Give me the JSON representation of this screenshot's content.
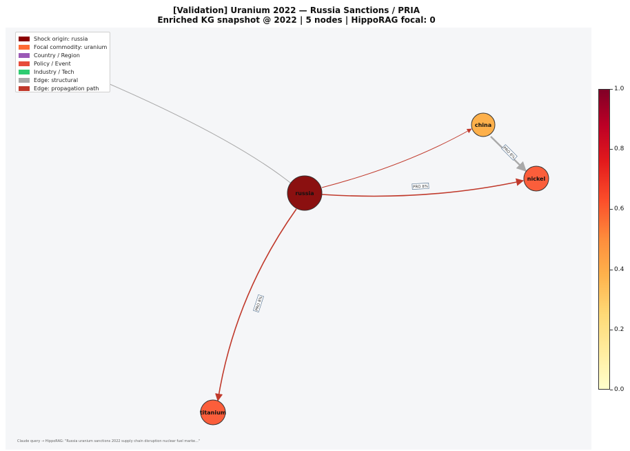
{
  "title_line1": "[Validation] Uranium 2022 — Russia Sanctions / PRIA",
  "title_line2": "Enriched KG snapshot @ 2022  |  5 nodes  |  HippoRAG focal: 0",
  "legend": [
    {
      "label": "Shock origin: russia",
      "color": "#8b0000"
    },
    {
      "label": "Focal commodity: uranium",
      "color": "#ff6b35"
    },
    {
      "label": "Country / Region",
      "color": "#9b59b6"
    },
    {
      "label": "Policy / Event",
      "color": "#e74c3c"
    },
    {
      "label": "Industry / Tech",
      "color": "#2ecc71"
    },
    {
      "label": "Edge: structural",
      "color": "#aaaaaa"
    },
    {
      "label": "Edge: propagation path",
      "color": "#c0392b"
    }
  ],
  "nodes": [
    {
      "id": "russia",
      "label": "russia",
      "color": "#8b1010"
    },
    {
      "id": "china",
      "label": "china",
      "color": "#fdb04b"
    },
    {
      "id": "nickel",
      "label": "nickel",
      "color": "#fb5e3b"
    },
    {
      "id": "titanium",
      "label": "titanium",
      "color": "#fb5e3b"
    },
    {
      "id": "hidden",
      "label": "",
      "color": "#ff6b35"
    }
  ],
  "edge_labels": {
    "russia_nickel": "PRO 8%",
    "china_nickel": "PRO 8%",
    "russia_titanium": "PRO 8%"
  },
  "colorbar": {
    "min": 0.0,
    "max": 1.0,
    "ticks": [
      "0.0",
      "0.2",
      "0.4",
      "0.6",
      "0.8",
      "1.0"
    ],
    "colormap": "YlOrRd"
  },
  "footer": "Claude query → HippoRAG: \"Russia uranium sanctions 2022 supply chain disruption nuclear fuel marke...\""
}
